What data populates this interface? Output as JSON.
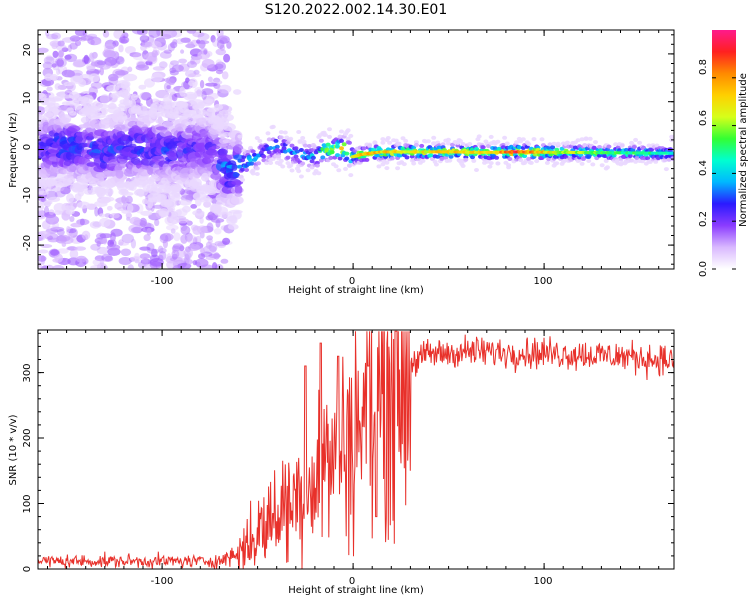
{
  "title": "S120.2022.002.14.30.E01",
  "colors": {
    "snr_line": "#e8302a",
    "spectrogram_low": "#7b00ff",
    "spectrogram_high": "#ff1a5c",
    "background": "#ffffff"
  },
  "chart_data": [
    {
      "type": "heatmap",
      "name": "spectrogram",
      "xlabel": "Height of straight line (km)",
      "ylabel": "Frequency (Hz)",
      "xlim": [
        -165,
        168
      ],
      "ylim": [
        -25,
        25
      ],
      "xticks": [
        -100,
        0,
        100
      ],
      "xtick_labels": [
        "-100",
        "0",
        "100"
      ],
      "yticks": [
        -20,
        -10,
        0,
        10,
        20
      ],
      "ytick_labels": [
        "-20",
        "-10",
        "0",
        "10",
        "20"
      ],
      "grid": false,
      "colorbar": {
        "label": "Normalized spectral amplitude",
        "range": [
          0,
          1
        ],
        "ticks": [
          0.0,
          0.2,
          0.4,
          0.6,
          0.8
        ],
        "tick_labels": [
          "0.0",
          "0.2",
          "0.4",
          "0.6",
          "0.8"
        ],
        "colormap": [
          "#ffffff",
          "#d9b8ff",
          "#8b3cff",
          "#2a1aff",
          "#00b8ff",
          "#00ffd0",
          "#33ff33",
          "#d6ff1a",
          "#ffd000",
          "#ff8a00",
          "#ff2020",
          "#ff1a8c"
        ]
      },
      "center_frequency_track": [
        {
          "x": -165,
          "f": 0.5,
          "amp": 0.25
        },
        {
          "x": -150,
          "f": 0.8,
          "amp": 0.3
        },
        {
          "x": -130,
          "f": -0.5,
          "amp": 0.3
        },
        {
          "x": -110,
          "f": 0.5,
          "amp": 0.3
        },
        {
          "x": -90,
          "f": -0.3,
          "amp": 0.28
        },
        {
          "x": -75,
          "f": 0.3,
          "amp": 0.25
        },
        {
          "x": -65,
          "f": -5,
          "amp": 0.35
        },
        {
          "x": -58,
          "f": -3,
          "amp": 0.4
        },
        {
          "x": -50,
          "f": -1.5,
          "amp": 0.35
        },
        {
          "x": -40,
          "f": 1,
          "amp": 0.35
        },
        {
          "x": -30,
          "f": -1,
          "amp": 0.35
        },
        {
          "x": -20,
          "f": -1.5,
          "amp": 0.4
        },
        {
          "x": -15,
          "f": 0,
          "amp": 0.6
        },
        {
          "x": -5,
          "f": 0.2,
          "amp": 0.7
        },
        {
          "x": 0,
          "f": -1.5,
          "amp": 0.6
        },
        {
          "x": 5,
          "f": -1,
          "amp": 0.75
        },
        {
          "x": 15,
          "f": -0.5,
          "amp": 0.7
        },
        {
          "x": 30,
          "f": -0.5,
          "amp": 0.65
        },
        {
          "x": 50,
          "f": -0.5,
          "amp": 0.7
        },
        {
          "x": 70,
          "f": -0.6,
          "amp": 0.65
        },
        {
          "x": 85,
          "f": -0.5,
          "amp": 0.85
        },
        {
          "x": 110,
          "f": -0.6,
          "amp": 0.6
        },
        {
          "x": 140,
          "f": -0.7,
          "amp": 0.5
        },
        {
          "x": 168,
          "f": -0.8,
          "amp": 0.45
        }
      ],
      "scatter_extent_x": [
        -165,
        -65
      ],
      "scatter_extent_f": [
        -25,
        25
      ]
    },
    {
      "type": "line",
      "name": "snr",
      "xlabel": "Height of straight line (km)",
      "ylabel": "SNR (10 * v/v)",
      "xlim": [
        -165,
        168
      ],
      "ylim": [
        0,
        365
      ],
      "xticks": [
        -100,
        0,
        100
      ],
      "xtick_labels": [
        "-100",
        "0",
        "100"
      ],
      "yticks": [
        0,
        100,
        200,
        300
      ],
      "ytick_labels": [
        "0",
        "100",
        "200",
        "300"
      ],
      "grid": false,
      "trend": [
        {
          "x": -165,
          "y": 12
        },
        {
          "x": -110,
          "y": 12
        },
        {
          "x": -70,
          "y": 12
        },
        {
          "x": -60,
          "y": 25
        },
        {
          "x": -50,
          "y": 55
        },
        {
          "x": -40,
          "y": 85
        },
        {
          "x": -30,
          "y": 110
        },
        {
          "x": -20,
          "y": 140
        },
        {
          "x": -10,
          "y": 175
        },
        {
          "x": 0,
          "y": 210
        },
        {
          "x": 10,
          "y": 255
        },
        {
          "x": 20,
          "y": 295
        },
        {
          "x": 30,
          "y": 315
        },
        {
          "x": 40,
          "y": 328
        },
        {
          "x": 60,
          "y": 332
        },
        {
          "x": 100,
          "y": 330
        },
        {
          "x": 140,
          "y": 325
        },
        {
          "x": 168,
          "y": 318
        }
      ],
      "peaks": [
        {
          "x": -25,
          "y": 310
        },
        {
          "x": -17,
          "y": 345
        },
        {
          "x": -8,
          "y": 325
        },
        {
          "x": 8,
          "y": 310
        },
        {
          "x": 12,
          "y": 80
        }
      ]
    }
  ]
}
